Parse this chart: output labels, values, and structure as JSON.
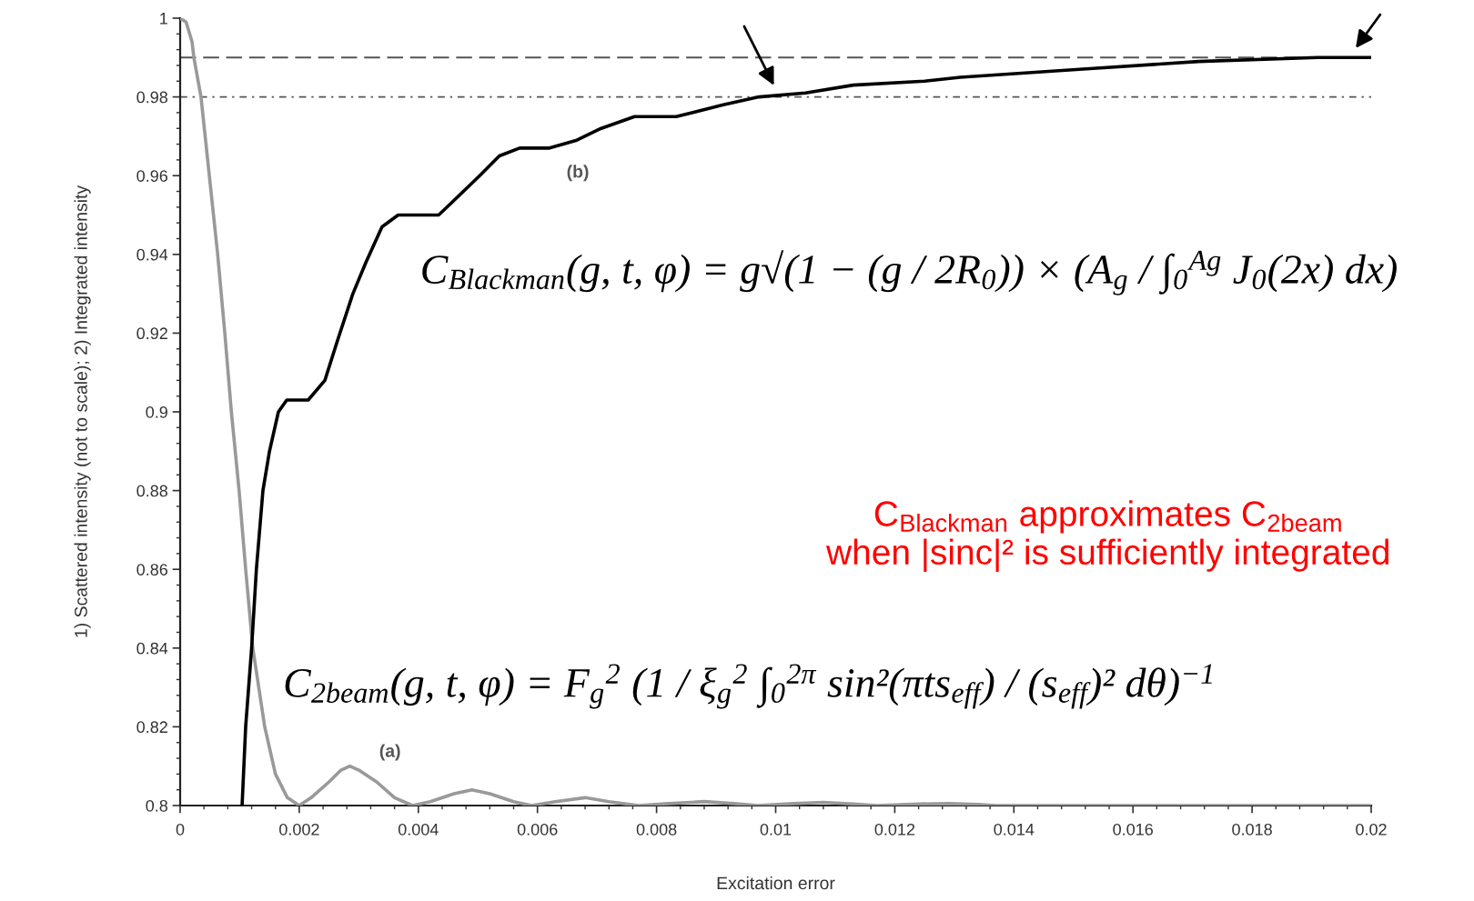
{
  "chart_data": {
    "type": "line",
    "xlabel": "Excitation error",
    "ylabel": "1) Scattered intensity (not to scale); 2) Integrated intensity",
    "xlim": [
      0,
      0.02
    ],
    "ylim": [
      0.8,
      1
    ],
    "xticks": [
      0,
      0.002,
      0.004,
      0.006,
      0.008,
      0.01,
      0.012,
      0.014,
      0.016,
      0.018,
      0.02
    ],
    "yticks": [
      0.8,
      0.82,
      0.84,
      0.86,
      0.88,
      0.9,
      0.92,
      0.94,
      0.96,
      0.98,
      1
    ],
    "series": [
      {
        "color": "#999999",
        "x": [
          0,
          0.0001,
          0.0002,
          0.00023,
          0.00035,
          0.00049,
          0.00063,
          0.00075,
          0.00086,
          0.00099,
          0.0011,
          0.00122,
          0.00142,
          0.0016,
          0.0018,
          0.002,
          0.0022,
          0.0025,
          0.0027,
          0.00285,
          0.003,
          0.0033,
          0.0036,
          0.0039,
          0.0042,
          0.0046,
          0.0049,
          0.0052,
          0.0056,
          0.0059,
          0.0063,
          0.0068,
          0.0072,
          0.0077,
          0.0082,
          0.0088,
          0.0093,
          0.0097,
          0.0103,
          0.0108,
          0.0113,
          0.0117,
          0.0124,
          0.0129,
          0.0134,
          0.0137,
          0.02
        ],
        "values": [
          1,
          0.999,
          0.994,
          0.99,
          0.98,
          0.96,
          0.94,
          0.92,
          0.9,
          0.88,
          0.86,
          0.84,
          0.82,
          0.808,
          0.802,
          0.8,
          0.802,
          0.806,
          0.809,
          0.81,
          0.809,
          0.806,
          0.802,
          0.8,
          0.801,
          0.803,
          0.804,
          0.803,
          0.801,
          0.8,
          0.801,
          0.802,
          0.801,
          0.8,
          0.8005,
          0.801,
          0.8005,
          0.8,
          0.8005,
          0.8008,
          0.8004,
          0.8,
          0.8004,
          0.8005,
          0.8003,
          0.8,
          0.8
        ]
      },
      {
        "color": "#000000",
        "x": [
          0.00104,
          0.0011,
          0.0012,
          0.00128,
          0.00139,
          0.0015,
          0.00165,
          0.00179,
          0.00215,
          0.00243,
          0.00264,
          0.0029,
          0.00312,
          0.00339,
          0.00366,
          0.00434,
          0.00455,
          0.00503,
          0.00536,
          0.0057,
          0.00619,
          0.00666,
          0.00707,
          0.00763,
          0.00833,
          0.00912,
          0.00972,
          0.0105,
          0.0113,
          0.0125,
          0.0131,
          0.0151,
          0.0171,
          0.0191,
          0.02
        ],
        "values": [
          0.8,
          0.82,
          0.84,
          0.86,
          0.88,
          0.89,
          0.9,
          0.903,
          0.903,
          0.908,
          0.918,
          0.93,
          0.938,
          0.947,
          0.95,
          0.95,
          0.953,
          0.96,
          0.965,
          0.967,
          0.967,
          0.969,
          0.972,
          0.975,
          0.975,
          0.978,
          0.98,
          0.981,
          0.983,
          0.984,
          0.985,
          0.987,
          0.989,
          0.99,
          0.99
        ]
      }
    ],
    "ref_lines": [
      {
        "axis": "y",
        "value": 0.99,
        "line_style": "dashed",
        "color": "#555555"
      },
      {
        "axis": "y",
        "value": 0.98,
        "line_style": "dashdot",
        "color": "#555555"
      }
    ],
    "annotations": [
      "C$_{Blackman}$(g, t, φ) = g√(1 − (g / 2R$_{0}$)) × (A$_{g}$ / ∫$_{0}$$^{Ag}$ J$_{0}$(2x) dx)",
      "(b)",
      "C$_{Blackman}$ approximates C$_{2beam}$\nwhen |sinc|² is sufficiently integrated",
      "C$_{2beam}$(g, t, φ) = F$_{g}$$^{2}$ (1 / ξ$_{g}$$^{2}$ ∫$_{0}$$^{2π}$ sin²(πts$_{eff}$) / (s$_{eff}$)² dθ)$^{−1}$",
      "(a)"
    ]
  }
}
